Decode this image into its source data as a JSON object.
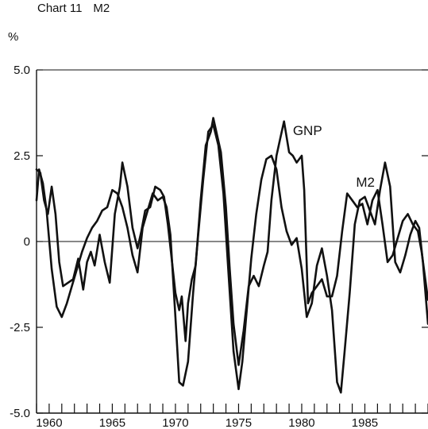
{
  "chart_data": {
    "type": "line",
    "title": "Chart 11",
    "subtitle": "M2",
    "ylabel": "%",
    "ylim": [
      -5.0,
      5.0
    ],
    "yticks": [
      5.0,
      2.5,
      0,
      -2.5,
      -5.0
    ],
    "ytick_labels": [
      "5.0",
      "2.5",
      "0",
      "-2.5",
      "-5.0"
    ],
    "xlim": [
      1959,
      1990
    ],
    "xtick_labels": [
      "1960",
      "1965",
      "1970",
      "1975",
      "1980",
      "1985"
    ],
    "xtick_values": [
      1960,
      1965,
      1970,
      1975,
      1980,
      1985
    ],
    "grid": false,
    "zero_line": true,
    "series": [
      {
        "name": "GNP",
        "x": [
          1959.0,
          1959.3,
          1959.6,
          1959.9,
          1960.2,
          1960.5,
          1960.8,
          1961.1,
          1961.5,
          1961.9,
          1962.3,
          1962.7,
          1963.0,
          1963.3,
          1963.6,
          1964.0,
          1964.4,
          1964.8,
          1965.2,
          1965.6,
          1965.8,
          1966.2,
          1966.6,
          1967.0,
          1967.3,
          1967.6,
          1968.0,
          1968.4,
          1968.8,
          1969.1,
          1969.4,
          1969.7,
          1970.0,
          1970.3,
          1970.5,
          1970.8,
          1971.0,
          1971.3,
          1971.6,
          1972.0,
          1972.4,
          1972.8,
          1973.0,
          1973.3,
          1973.6,
          1974.0,
          1974.3,
          1974.6,
          1975.0,
          1975.4,
          1975.8,
          1976.2,
          1976.6,
          1977.0,
          1977.3,
          1977.6,
          1978.0,
          1978.3,
          1978.6,
          1979.0,
          1979.3,
          1979.6,
          1980.0,
          1980.2,
          1980.5,
          1980.8,
          1981.2,
          1981.6,
          1982.0,
          1982.4,
          1982.8,
          1983.2,
          1983.6,
          1984.0,
          1984.4,
          1984.8,
          1985.2,
          1985.6,
          1986.0,
          1986.4,
          1986.8,
          1987.2,
          1987.6,
          1988.0,
          1988.4,
          1988.8,
          1989.2,
          1989.5,
          1990.0
        ],
        "y": [
          2.1,
          2.0,
          1.2,
          0.8,
          1.6,
          0.8,
          -0.6,
          -1.3,
          -1.2,
          -1.1,
          -0.5,
          -1.4,
          -0.6,
          -0.3,
          -0.7,
          0.2,
          -0.6,
          -1.2,
          0.8,
          1.6,
          2.3,
          1.6,
          0.4,
          -0.2,
          0.3,
          0.9,
          1.0,
          1.6,
          1.5,
          1.3,
          0.5,
          -0.5,
          -1.5,
          -2.0,
          -1.6,
          -2.9,
          -1.8,
          -1.1,
          -0.7,
          1.2,
          2.8,
          3.2,
          3.6,
          3.1,
          2.6,
          1.0,
          -0.8,
          -2.4,
          -3.6,
          -2.6,
          -1.3,
          -1.0,
          -1.3,
          -0.7,
          -0.3,
          1.2,
          2.5,
          3.0,
          3.5,
          2.6,
          2.5,
          2.3,
          2.5,
          1.5,
          -1.8,
          -1.5,
          -1.3,
          -1.1,
          -1.6,
          -1.6,
          -1.0,
          0.3,
          1.4,
          1.2,
          1.0,
          1.1,
          0.5,
          1.2,
          1.5,
          0.5,
          -0.6,
          -0.4,
          0.1,
          0.6,
          0.8,
          0.5,
          0.3,
          -0.3,
          -1.7
        ]
      },
      {
        "name": "M2",
        "x": [
          1959.0,
          1959.2,
          1959.5,
          1959.8,
          1960.2,
          1960.6,
          1961.0,
          1961.4,
          1961.8,
          1962.2,
          1962.6,
          1963.0,
          1963.4,
          1963.8,
          1964.2,
          1964.6,
          1965.0,
          1965.4,
          1965.8,
          1966.2,
          1966.6,
          1967.0,
          1967.4,
          1967.8,
          1968.2,
          1968.6,
          1969.0,
          1969.3,
          1969.6,
          1970.0,
          1970.3,
          1970.6,
          1971.0,
          1971.4,
          1971.8,
          1972.2,
          1972.6,
          1973.0,
          1973.4,
          1973.8,
          1974.2,
          1974.6,
          1975.0,
          1975.3,
          1975.6,
          1976.0,
          1976.4,
          1976.8,
          1977.2,
          1977.6,
          1978.0,
          1978.4,
          1978.8,
          1979.2,
          1979.6,
          1980.0,
          1980.4,
          1980.8,
          1981.2,
          1981.6,
          1982.0,
          1982.4,
          1982.8,
          1983.1,
          1983.4,
          1983.8,
          1984.2,
          1984.6,
          1985.0,
          1985.4,
          1985.8,
          1986.2,
          1986.6,
          1987.0,
          1987.4,
          1987.8,
          1988.2,
          1988.6,
          1989.0,
          1989.3,
          1989.6,
          1990.0
        ],
        "y": [
          1.2,
          2.1,
          1.7,
          0.9,
          -0.8,
          -1.9,
          -2.2,
          -1.8,
          -1.3,
          -0.8,
          -0.3,
          0.1,
          0.4,
          0.6,
          0.9,
          1.0,
          1.5,
          1.4,
          1.0,
          0.4,
          -0.4,
          -0.9,
          0.4,
          0.9,
          1.4,
          1.2,
          1.3,
          1.0,
          0.2,
          -2.2,
          -4.1,
          -4.2,
          -3.5,
          -1.5,
          0.2,
          1.8,
          3.2,
          3.4,
          2.8,
          1.4,
          -0.9,
          -3.2,
          -4.3,
          -3.5,
          -2.2,
          -0.5,
          0.8,
          1.8,
          2.4,
          2.5,
          2.1,
          1.0,
          0.3,
          -0.1,
          0.1,
          -0.8,
          -2.2,
          -1.8,
          -0.7,
          -0.2,
          -1.0,
          -2.0,
          -4.1,
          -4.4,
          -3.2,
          -1.5,
          0.5,
          1.2,
          1.3,
          0.9,
          0.5,
          1.5,
          2.3,
          1.6,
          -0.6,
          -0.9,
          -0.4,
          0.2,
          0.6,
          0.4,
          -0.6,
          -2.4
        ]
      }
    ],
    "annotations": [
      {
        "text": "GNP",
        "x": 1979.3,
        "y": 3.1
      },
      {
        "text": "M2",
        "x": 1984.3,
        "y": 1.6
      }
    ]
  }
}
